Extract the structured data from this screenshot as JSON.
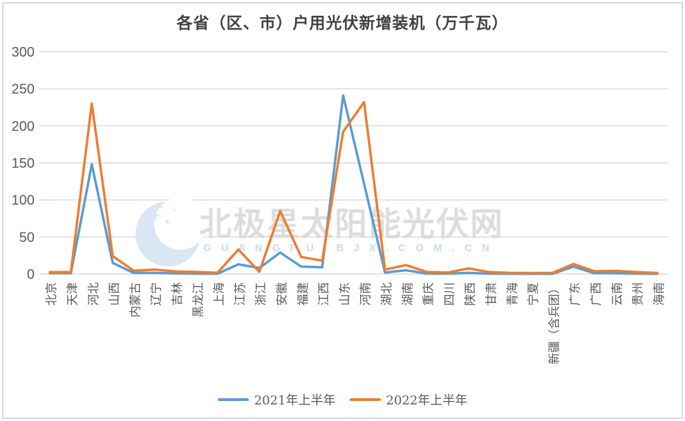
{
  "title": "各省（区、市）户用光伏新增装机（万千瓦）",
  "watermark": {
    "logo": "crescent-moon-stars-logo",
    "text": "北极星太阳能光伏网",
    "subtext": "G U A N G F U . B J X . C O M . C N"
  },
  "colors": {
    "series_2021": "#5B9BD5",
    "series_2022": "#ED7D31",
    "grid": "#D9D9D9",
    "axis_text": "#595959",
    "title_text": "#404040",
    "border": "#D9D9D9",
    "watermark_text": "#D8D8D8",
    "watermark_sub": "#CBDAEA",
    "watermark_logo": "#D9E6F3"
  },
  "chart_data": {
    "type": "line",
    "title": "各省（区、市）户用光伏新增装机（万千瓦）",
    "xlabel": "",
    "ylabel": "",
    "ylim": [
      0,
      300
    ],
    "yticks": [
      0,
      50,
      100,
      150,
      200,
      250,
      300
    ],
    "grid": true,
    "legend_position": "bottom",
    "categories": [
      "北京",
      "天津",
      "河北",
      "山西",
      "内蒙古",
      "辽宁",
      "吉林",
      "黑龙江",
      "上海",
      "江苏",
      "浙江",
      "安徽",
      "福建",
      "江西",
      "山东",
      "河南",
      "湖北",
      "湖南",
      "重庆",
      "四川",
      "陕西",
      "甘肃",
      "青海",
      "宁夏",
      "新疆（含兵团）",
      "广东",
      "广西",
      "云南",
      "贵州",
      "海南"
    ],
    "series": [
      {
        "name": "2021年上半年",
        "color": "#5B9BD5",
        "values": [
          1,
          1,
          148,
          15,
          1.5,
          1.5,
          0.8,
          0.5,
          0.4,
          13,
          8,
          29,
          10,
          9,
          241,
          122,
          2,
          5,
          0.6,
          0.5,
          1.5,
          0.5,
          0.3,
          0.3,
          0.3,
          10,
          1,
          1,
          0.5,
          0.3
        ]
      },
      {
        "name": "2022年上半年",
        "color": "#ED7D31",
        "values": [
          2.5,
          2.5,
          230,
          24,
          4.5,
          6,
          3.5,
          2.8,
          1.6,
          33,
          3,
          85,
          23,
          18,
          192,
          232,
          6,
          12,
          2.8,
          2,
          7.5,
          2.5,
          1.5,
          1.3,
          1.5,
          13.5,
          3.7,
          4.3,
          2.5,
          1.5
        ]
      }
    ]
  }
}
